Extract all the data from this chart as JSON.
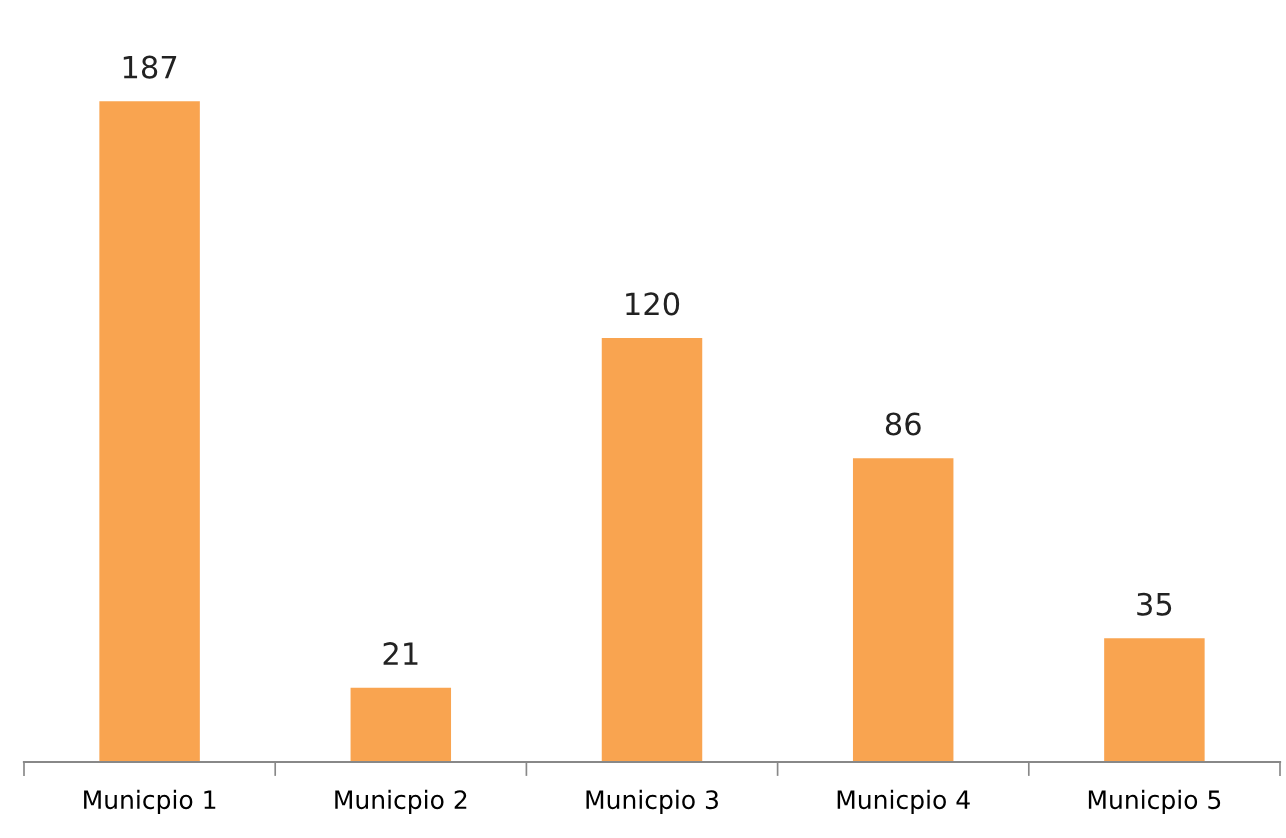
{
  "chart_data": {
    "type": "bar",
    "categories": [
      "Municpio 1",
      "Municpio 2",
      "Municpio 3",
      "Municpio 4",
      "Municpio 5"
    ],
    "values": [
      187,
      21,
      120,
      86,
      35
    ],
    "color": "#f9a450",
    "data_labels": true,
    "grid": false,
    "legend": false
  }
}
